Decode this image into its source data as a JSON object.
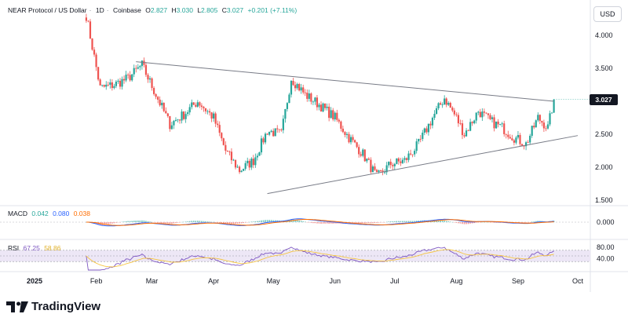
{
  "header": {
    "symbol": "NEAR Protocol / US Dollar",
    "timeframe": "1D",
    "exchange": "Coinbase",
    "open_label": "O",
    "open": "2.827",
    "high_label": "H",
    "high": "3.030",
    "low_label": "L",
    "low": "2.805",
    "close_label": "C",
    "close": "3.027",
    "change": "+0.201 (+7.11%)"
  },
  "currency_button": "USD",
  "last_price_badge": "3.027",
  "brand": "TradingView",
  "colors": {
    "up": "#26a69a",
    "down": "#ef5350",
    "macd_line": "#2962ff",
    "signal_line": "#ff6d00",
    "rsi_line": "#7e57c2",
    "rsi_ma": "#f5c542",
    "trendline": "#787b86",
    "rsi_band": "#ede7f6"
  },
  "macd": {
    "label": "MACD",
    "hist": "0.042",
    "macd": "0.080",
    "signal": "0.038",
    "axis_ticks": [
      "0.000"
    ]
  },
  "rsi": {
    "label": "RSI",
    "value": "67.25",
    "ma": "58.86",
    "axis_ticks": [
      "80.00",
      "40.00"
    ],
    "upper": 70,
    "lower": 30
  },
  "chart_data": {
    "type": "candlestick",
    "x_ticks": [
      "2025",
      "Feb",
      "Mar",
      "Apr",
      "May",
      "Jun",
      "Jul",
      "Aug",
      "Sep",
      "Oct"
    ],
    "y_ticks": [
      "4.000",
      "3.500",
      "3.000",
      "2.500",
      "2.000",
      "1.500"
    ],
    "y_range": [
      1.45,
      4.4
    ],
    "price_path": [
      [
        "2025-01-27",
        4.3
      ],
      [
        "2025-02-03",
        3.2
      ],
      [
        "2025-02-10",
        3.25
      ],
      [
        "2025-02-17",
        3.35
      ],
      [
        "2025-02-24",
        3.55
      ],
      [
        "2025-03-03",
        3.1
      ],
      [
        "2025-03-10",
        2.65
      ],
      [
        "2025-03-17",
        2.8
      ],
      [
        "2025-03-24",
        3.0
      ],
      [
        "2025-04-01",
        2.75
      ],
      [
        "2025-04-07",
        2.25
      ],
      [
        "2025-04-14",
        1.95
      ],
      [
        "2025-04-21",
        2.1
      ],
      [
        "2025-04-28",
        2.55
      ],
      [
        "2025-05-05",
        2.5
      ],
      [
        "2025-05-10",
        3.35
      ],
      [
        "2025-05-17",
        3.1
      ],
      [
        "2025-05-24",
        2.95
      ],
      [
        "2025-06-01",
        2.75
      ],
      [
        "2025-06-08",
        2.45
      ],
      [
        "2025-06-15",
        2.2
      ],
      [
        "2025-06-22",
        1.85
      ],
      [
        "2025-06-29",
        2.05
      ],
      [
        "2025-07-06",
        2.1
      ],
      [
        "2025-07-13",
        2.35
      ],
      [
        "2025-07-20",
        2.75
      ],
      [
        "2025-07-26",
        3.05
      ],
      [
        "2025-08-01",
        2.75
      ],
      [
        "2025-08-05",
        2.5
      ],
      [
        "2025-08-12",
        2.85
      ],
      [
        "2025-08-18",
        2.7
      ],
      [
        "2025-08-24",
        2.6
      ],
      [
        "2025-08-30",
        2.45
      ],
      [
        "2025-09-05",
        2.35
      ],
      [
        "2025-09-11",
        2.75
      ],
      [
        "2025-09-16",
        2.6
      ],
      [
        "2025-09-19",
        3.027
      ]
    ],
    "trendlines": [
      {
        "from": [
          "2025-02-21",
          3.6
        ],
        "to": [
          "2025-09-19",
          3.0
        ]
      },
      {
        "from": [
          "2025-04-28",
          1.6
        ],
        "to": [
          "2025-10-01",
          2.48
        ]
      }
    ]
  }
}
